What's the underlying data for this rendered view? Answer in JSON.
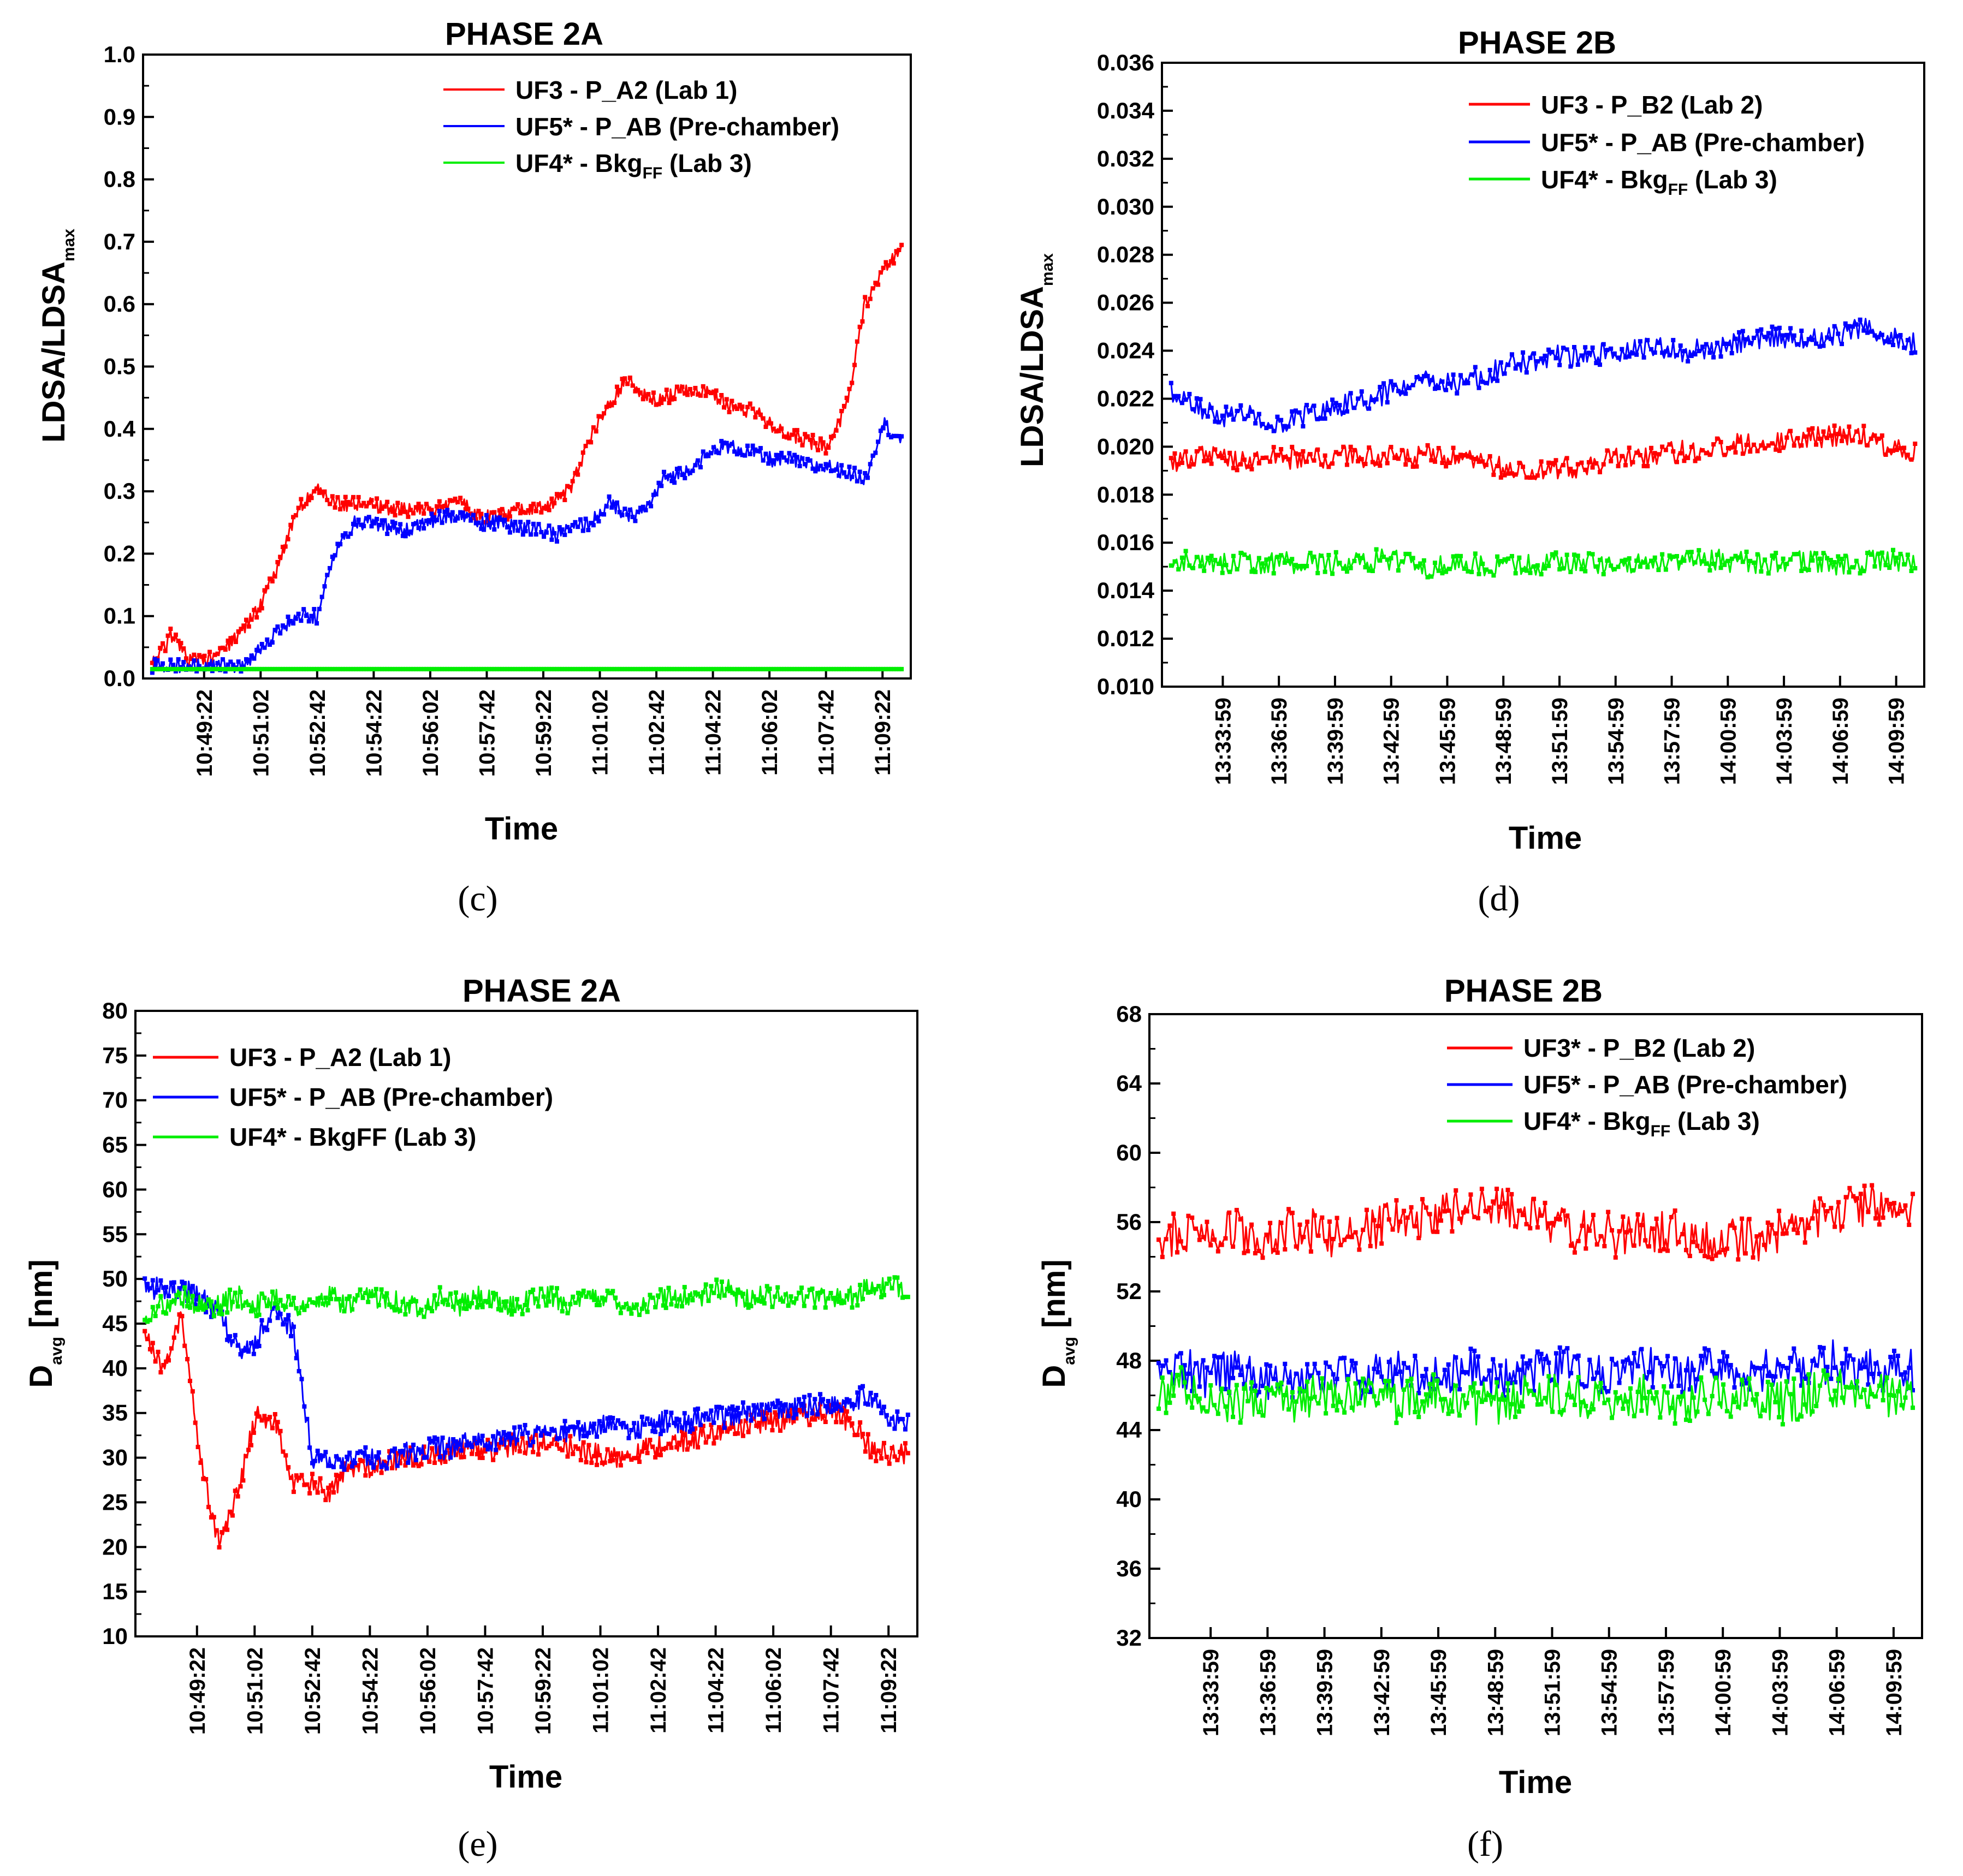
{
  "chart_data": [
    {
      "id": "c",
      "type": "line",
      "caption": "(c)",
      "title": "PHASE 2A",
      "xlabel": "Time",
      "ylabel_main": "LDSA/LDSA",
      "ylabel_sub": "max",
      "ylim": [
        0,
        1.0
      ],
      "yticks": [
        "0.0",
        "0.1",
        "0.2",
        "0.3",
        "0.4",
        "0.5",
        "0.6",
        "0.7",
        "0.8",
        "0.9",
        "1.0"
      ],
      "xticks": [
        "10:49:22",
        "10:51:02",
        "10:52:42",
        "10:54:22",
        "10:56:02",
        "10:57:42",
        "10:59:22",
        "11:01:02",
        "11:02:42",
        "11:04:22",
        "11:06:02",
        "11:07:42",
        "11:09:22"
      ],
      "series": [
        {
          "name": "UF3 - P_A2 (Lab 1)",
          "color": "#ff0000",
          "values": [
            0.02,
            0.07,
            0.03,
            0.03,
            0.05,
            0.08,
            0.12,
            0.19,
            0.27,
            0.31,
            0.28,
            0.28,
            0.28,
            0.27,
            0.27,
            0.27,
            0.28,
            0.28,
            0.26,
            0.26,
            0.27,
            0.27,
            0.28,
            0.31,
            0.39,
            0.44,
            0.48,
            0.45,
            0.45,
            0.46,
            0.46,
            0.45,
            0.43,
            0.43,
            0.4,
            0.39,
            0.38,
            0.37,
            0.44,
            0.6,
            0.65,
            0.69
          ]
        },
        {
          "name": "UF5* - P_AB (Pre-chamber)",
          "color": "#0000ff",
          "values": [
            0.02,
            0.02,
            0.02,
            0.02,
            0.02,
            0.02,
            0.05,
            0.08,
            0.1,
            0.1,
            0.2,
            0.25,
            0.25,
            0.24,
            0.24,
            0.25,
            0.26,
            0.26,
            0.25,
            0.25,
            0.24,
            0.24,
            0.23,
            0.24,
            0.25,
            0.28,
            0.26,
            0.27,
            0.32,
            0.33,
            0.35,
            0.37,
            0.37,
            0.36,
            0.35,
            0.35,
            0.34,
            0.34,
            0.33,
            0.32,
            0.41,
            0.38
          ]
        },
        {
          "name": "UF4* - Bkg",
          "name_sub": "FF",
          "name_tail": " (Lab 3)",
          "color": "#00ee00",
          "values": [
            0.015,
            0.015,
            0.015,
            0.015,
            0.015,
            0.015,
            0.015,
            0.015,
            0.015,
            0.015,
            0.015,
            0.015,
            0.015,
            0.015,
            0.015,
            0.015,
            0.015,
            0.015,
            0.015,
            0.015,
            0.015,
            0.015,
            0.015,
            0.015,
            0.015,
            0.015,
            0.015,
            0.015,
            0.015,
            0.015,
            0.015,
            0.015,
            0.015,
            0.015,
            0.015,
            0.015,
            0.015,
            0.015,
            0.015,
            0.015,
            0.015,
            0.015
          ]
        }
      ]
    },
    {
      "id": "d",
      "type": "line",
      "caption": "(d)",
      "title": "PHASE 2B",
      "xlabel": "Time",
      "ylabel_main": "LDSA/LDSA",
      "ylabel_sub": "max",
      "ylim": [
        0.01,
        0.036
      ],
      "yticks": [
        "0.010",
        "0.012",
        "0.014",
        "0.016",
        "0.018",
        "0.020",
        "0.022",
        "0.024",
        "0.026",
        "0.028",
        "0.030",
        "0.032",
        "0.034",
        "0.036"
      ],
      "xticks": [
        "13:33:59",
        "13:36:59",
        "13:39:59",
        "13:42:59",
        "13:45:59",
        "13:48:59",
        "13:51:59",
        "13:54:59",
        "13:57:59",
        "14:00:59",
        "14:03:59",
        "14:06:59",
        "14:09:59"
      ],
      "series": [
        {
          "name": "UF3 - P_B2 (Lab 2)",
          "color": "#ff0000",
          "values": [
            0.0194,
            0.0196,
            0.0195,
            0.0194,
            0.0196,
            0.0195,
            0.0195,
            0.0196,
            0.0196,
            0.0195,
            0.0196,
            0.0195,
            0.0193,
            0.0191,
            0.0189,
            0.019,
            0.0192,
            0.0194,
            0.0196,
            0.0197,
            0.0198,
            0.0199,
            0.0201,
            0.0202,
            0.0203,
            0.0204,
            0.0205,
            0.0204,
            0.02,
            0.0198
          ]
        },
        {
          "name": "UF5* - P_AB (Pre-chamber)",
          "color": "#0000ff",
          "values": [
            0.0222,
            0.0216,
            0.0213,
            0.0214,
            0.021,
            0.0212,
            0.0215,
            0.0218,
            0.0221,
            0.0224,
            0.0227,
            0.0226,
            0.0229,
            0.0233,
            0.0236,
            0.0238,
            0.0237,
            0.0239,
            0.024,
            0.0241,
            0.024,
            0.0241,
            0.0243,
            0.0245,
            0.0246,
            0.0245,
            0.0247,
            0.0249,
            0.0246,
            0.0243
          ]
        },
        {
          "name": "UF4* - Bkg",
          "name_sub": "FF",
          "name_tail": " (Lab 3)",
          "color": "#00ee00",
          "values": [
            0.0152,
            0.0153,
            0.0151,
            0.0152,
            0.0151,
            0.0152,
            0.0152,
            0.0151,
            0.0153,
            0.0152,
            0.015,
            0.0151,
            0.0151,
            0.015,
            0.0151,
            0.0152,
            0.0151,
            0.0151,
            0.0152,
            0.0151,
            0.0152,
            0.0153,
            0.0152,
            0.0151,
            0.0152,
            0.0152,
            0.0151,
            0.0152,
            0.0153,
            0.0152
          ]
        }
      ]
    },
    {
      "id": "e",
      "type": "line",
      "caption": "(e)",
      "title": "PHASE 2A",
      "xlabel": "Time",
      "ylabel_main": "D",
      "ylabel_sub": "avg",
      "ylabel_tail": " [nm]",
      "ylim": [
        10,
        80
      ],
      "yticks": [
        "10",
        "15",
        "20",
        "25",
        "30",
        "35",
        "40",
        "45",
        "50",
        "55",
        "60",
        "65",
        "70",
        "75",
        "80"
      ],
      "xticks": [
        "10:49:22",
        "10:51:02",
        "10:52:42",
        "10:54:22",
        "10:56:02",
        "10:57:42",
        "10:59:22",
        "11:01:02",
        "11:02:42",
        "11:04:22",
        "11:06:02",
        "11:07:42",
        "11:09:22"
      ],
      "series": [
        {
          "name": "UF3 - P_A2 (Lab 1)",
          "color": "#ff0000",
          "values": [
            44,
            40,
            46,
            30,
            20,
            26,
            35,
            34,
            27,
            27,
            26,
            29,
            29,
            29.5,
            30,
            30,
            30.5,
            31,
            31,
            31,
            31.5,
            31.5,
            32,
            31,
            30.5,
            30,
            30.5,
            31,
            31.5,
            32,
            32.5,
            33,
            33.5,
            34,
            34,
            34.5,
            35,
            35,
            34,
            31,
            30.5,
            30.5
          ]
        },
        {
          "name": "UF5* - P_AB (Pre-chamber)",
          "color": "#0000ff",
          "values": [
            49,
            49,
            49,
            48,
            46,
            42,
            43,
            47,
            44,
            30,
            29.5,
            29.5,
            30,
            30,
            30.5,
            31,
            31,
            31.5,
            32,
            32,
            32.5,
            32.5,
            33,
            33,
            33.5,
            33.5,
            33,
            33.5,
            34,
            34,
            34.5,
            34.5,
            35,
            35,
            35.5,
            35.5,
            36,
            36,
            36.5,
            37,
            34,
            34
          ]
        },
        {
          "name": "UF4* - BkgFF (Lab 3)",
          "color": "#00ee00",
          "values": [
            46,
            47,
            48,
            47,
            47,
            48,
            47,
            48,
            47,
            47,
            48,
            47,
            48,
            48,
            47,
            47,
            48,
            47,
            48,
            47,
            47,
            48,
            48,
            47,
            48,
            48,
            47,
            47,
            48,
            48,
            48,
            49,
            48,
            48,
            48,
            48,
            48,
            48,
            48,
            49,
            49,
            49
          ]
        }
      ]
    },
    {
      "id": "f",
      "type": "line",
      "caption": "(f)",
      "title": "PHASE 2B",
      "xlabel": "Time",
      "ylabel_main": "D",
      "ylabel_sub": "avg",
      "ylabel_tail": " [nm]",
      "ylim": [
        32,
        68
      ],
      "yticks": [
        "32",
        "36",
        "40",
        "44",
        "48",
        "52",
        "56",
        "60",
        "64",
        "68"
      ],
      "xticks": [
        "13:33:59",
        "13:36:59",
        "13:39:59",
        "13:42:59",
        "13:45:59",
        "13:48:59",
        "13:51:59",
        "13:54:59",
        "13:57:59",
        "14:00:59",
        "14:03:59",
        "14:06:59",
        "14:09:59"
      ],
      "series": [
        {
          "name": "UF3* - P_B2 (Lab 2)",
          "color": "#ff0000",
          "values": [
            55,
            55.5,
            55,
            55.5,
            55,
            55.5,
            55.5,
            55,
            55.5,
            56,
            56,
            56.5,
            57,
            57,
            56.5,
            56,
            55.5,
            55.5,
            55,
            55.5,
            55.5,
            55,
            55,
            55,
            55.5,
            56,
            56.5,
            57,
            57,
            56.5
          ]
        },
        {
          "name": "UF5* - P_AB (Pre-chamber)",
          "color": "#0000ff",
          "values": [
            47,
            47.5,
            47,
            47.5,
            47,
            47,
            47.5,
            47,
            47,
            47.5,
            47,
            47,
            47.5,
            47,
            47,
            47.5,
            47.5,
            47,
            47.5,
            47.5,
            47,
            47.5,
            47.5,
            47.5,
            47.5,
            47.5,
            48,
            47.5,
            47.5,
            47.5
          ]
        },
        {
          "name": "UF4* - Bkg",
          "name_sub": "FF",
          "name_tail": " (Lab 3)",
          "color": "#00ee00",
          "values": [
            46,
            46.5,
            46,
            45.5,
            46,
            45.5,
            46,
            46,
            46,
            45.5,
            46,
            46,
            45.5,
            45.5,
            46,
            46,
            46,
            45.5,
            46,
            46,
            45.5,
            46,
            46,
            46,
            45.5,
            46,
            46.5,
            46,
            46,
            46
          ]
        }
      ]
    }
  ]
}
